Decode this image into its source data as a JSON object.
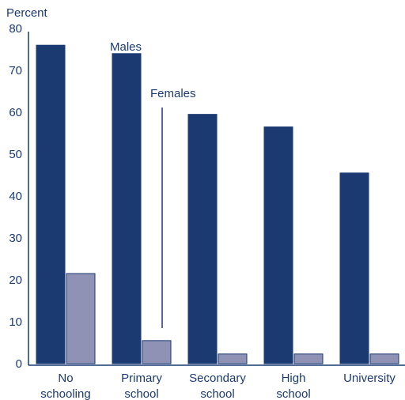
{
  "chart_data": {
    "type": "bar",
    "ylabel": "Percent",
    "ylim": [
      0,
      80
    ],
    "yticks": [
      0,
      10,
      20,
      30,
      40,
      50,
      60,
      70,
      80
    ],
    "categories": [
      [
        "No",
        "schooling"
      ],
      [
        "Primary",
        "school"
      ],
      [
        "Secondary",
        "school"
      ],
      [
        "High",
        "school"
      ],
      [
        "University"
      ]
    ],
    "series": [
      {
        "name": "Males",
        "values": [
          76,
          74,
          59.5,
          56.5,
          45.5
        ],
        "color": "#1b3a72"
      },
      {
        "name": "Females",
        "values": [
          21.5,
          5.5,
          2.3,
          2.3,
          2.3
        ],
        "color": "#8f91b5"
      }
    ],
    "annotations": {
      "males": "Males",
      "females": "Females"
    },
    "grid": false,
    "legend": "none (direct labels on bars)"
  }
}
